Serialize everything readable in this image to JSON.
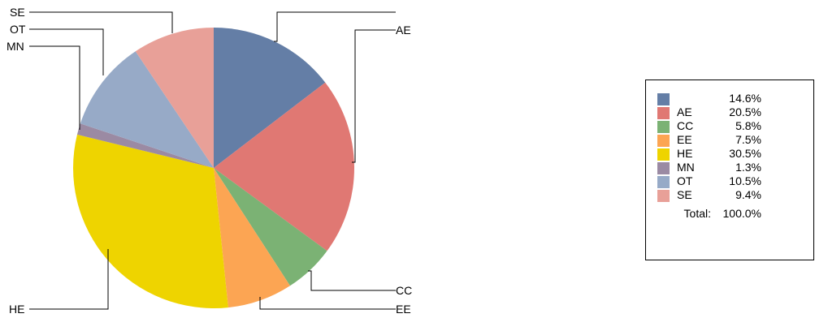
{
  "chart_data": {
    "type": "pie",
    "slices": [
      {
        "label": "",
        "value": 14.6,
        "display": "14.6%",
        "color": "#647ea6"
      },
      {
        "label": "AE",
        "value": 20.5,
        "display": "20.5%",
        "color": "#e07873"
      },
      {
        "label": "CC",
        "value": 5.8,
        "display": "5.8%",
        "color": "#7bb274"
      },
      {
        "label": "EE",
        "value": 7.5,
        "display": "7.5%",
        "color": "#fca553"
      },
      {
        "label": "HE",
        "value": 30.5,
        "display": "30.5%",
        "color": "#eed400"
      },
      {
        "label": "MN",
        "value": 1.3,
        "display": "1.3%",
        "color": "#9b8aa3"
      },
      {
        "label": "OT",
        "value": 10.5,
        "display": "10.5%",
        "color": "#97aac7"
      },
      {
        "label": "SE",
        "value": 9.4,
        "display": "9.4%",
        "color": "#e8a098"
      }
    ],
    "legend": {
      "placement": "right",
      "total_label": "Total:",
      "total_value": "100.0%"
    }
  }
}
